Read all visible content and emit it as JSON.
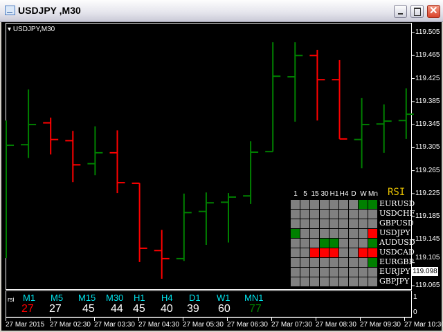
{
  "window": {
    "title": "USDJPY ,M30",
    "icon": "chart-icon",
    "buttons": [
      "minimize",
      "maximize",
      "close"
    ]
  },
  "chart": {
    "symbol_label": "USDJPY,M30",
    "price_axis": [
      "119.505",
      "119.465",
      "119.425",
      "119.385",
      "119.345",
      "119.305",
      "119.265",
      "119.225",
      "119.185",
      "119.145",
      "119.105",
      "119.065"
    ],
    "current_price": "119.098",
    "colors": {
      "up": "#008000",
      "down": "#ff0000",
      "background": "#000000"
    },
    "time_axis": [
      "27 Mar 2015",
      "27 Mar 02:30",
      "27 Mar 03:30",
      "27 Mar 04:30",
      "27 Mar 05:30",
      "27 Mar 06:30",
      "27 Mar 07:30",
      "27 Mar 08:30",
      "27 Mar 09:30",
      "27 Mar 10:30"
    ],
    "bars": [
      {
        "o": null,
        "h": 119.352,
        "l": 119.113,
        "c": 119.309
      },
      {
        "o": 119.31,
        "h": 119.406,
        "l": 119.287,
        "c": 119.345
      },
      {
        "o": 119.348,
        "h": 119.357,
        "l": 119.293,
        "c": 119.319
      },
      {
        "o": 119.317,
        "h": 119.334,
        "l": 119.245,
        "c": 119.275
      },
      {
        "o": 119.277,
        "h": 119.342,
        "l": 119.257,
        "c": 119.296
      },
      {
        "o": 119.296,
        "h": 119.335,
        "l": 119.226,
        "c": 119.244
      },
      {
        "o": 119.243,
        "h": 119.243,
        "l": 119.106,
        "c": 119.13
      },
      {
        "o": 119.126,
        "h": 119.162,
        "l": 119.077,
        "c": 119.112
      },
      {
        "o": 119.112,
        "h": 119.225,
        "l": 119.108,
        "c": 119.192
      },
      {
        "o": 119.194,
        "h": 119.227,
        "l": 119.136,
        "c": 119.209
      },
      {
        "o": 119.21,
        "h": 119.226,
        "l": 119.14,
        "c": 119.219
      },
      {
        "o": 119.221,
        "h": 119.316,
        "l": 119.207,
        "c": 119.297
      },
      {
        "o": 119.298,
        "h": 119.488,
        "l": 119.298,
        "c": 119.429
      },
      {
        "o": 119.428,
        "h": 119.488,
        "l": 119.35,
        "c": 119.465
      },
      {
        "o": 119.465,
        "h": 119.475,
        "l": 119.352,
        "c": 119.423
      },
      {
        "o": 119.423,
        "h": 119.457,
        "l": 119.32,
        "c": 119.32
      },
      {
        "o": 119.319,
        "h": 119.391,
        "l": 119.269,
        "c": 119.345
      },
      {
        "o": 119.346,
        "h": 119.38,
        "l": 119.296,
        "c": 119.351
      },
      {
        "o": 119.352,
        "h": 119.408,
        "l": 119.32,
        "c": 119.363
      }
    ]
  },
  "rsi_grid": {
    "title": "RSI",
    "columns": [
      "1",
      "5",
      "15",
      "30",
      "H1",
      "H4",
      "D",
      "W",
      "Mn"
    ],
    "rows": [
      {
        "pair": "EURUSD",
        "cells": [
          "n",
          "n",
          "n",
          "n",
          "n",
          "n",
          "n",
          "g",
          "g"
        ]
      },
      {
        "pair": "USDCHF",
        "cells": [
          "n",
          "n",
          "n",
          "n",
          "n",
          "n",
          "n",
          "n",
          "n"
        ]
      },
      {
        "pair": "GBPUSD",
        "cells": [
          "n",
          "n",
          "n",
          "n",
          "n",
          "n",
          "n",
          "n",
          "n"
        ]
      },
      {
        "pair": "USDJPY",
        "cells": [
          "g",
          "n",
          "n",
          "n",
          "n",
          "n",
          "n",
          "n",
          "r"
        ]
      },
      {
        "pair": "AUDUSD",
        "cells": [
          "n",
          "n",
          "n",
          "g",
          "g",
          "n",
          "n",
          "n",
          "g"
        ]
      },
      {
        "pair": "USDCAD",
        "cells": [
          "n",
          "n",
          "r",
          "r",
          "r",
          "n",
          "n",
          "r",
          "r"
        ]
      },
      {
        "pair": "EURGBP",
        "cells": [
          "n",
          "n",
          "n",
          "n",
          "n",
          "n",
          "n",
          "n",
          "g"
        ]
      },
      {
        "pair": "EURJPY",
        "cells": [
          "n",
          "n",
          "n",
          "n",
          "n",
          "n",
          "n",
          "n",
          "n"
        ]
      },
      {
        "pair": "GBPJPY",
        "cells": [
          "n",
          "n",
          "n",
          "n",
          "n",
          "n",
          "n",
          "n",
          "n"
        ]
      }
    ],
    "colors": {
      "g": "#008000",
      "r": "#ff0000",
      "n": "#808080"
    }
  },
  "rsi_panel": {
    "label": "rsi",
    "axis": [
      "1",
      "0"
    ],
    "items": [
      {
        "tf": "M1",
        "value": "27",
        "color": "#ff0000"
      },
      {
        "tf": "M5",
        "value": "27",
        "color": "#ffffff"
      },
      {
        "tf": "M15",
        "value": "45",
        "color": "#ffffff"
      },
      {
        "tf": "M30",
        "value": "44",
        "color": "#ffffff"
      },
      {
        "tf": "H1",
        "value": "45",
        "color": "#ffffff"
      },
      {
        "tf": "H4",
        "value": "40",
        "color": "#ffffff"
      },
      {
        "tf": "D1",
        "value": "39",
        "color": "#ffffff"
      },
      {
        "tf": "W1",
        "value": "60",
        "color": "#ffffff"
      },
      {
        "tf": "MN1",
        "value": "77",
        "color": "#008000"
      }
    ]
  }
}
